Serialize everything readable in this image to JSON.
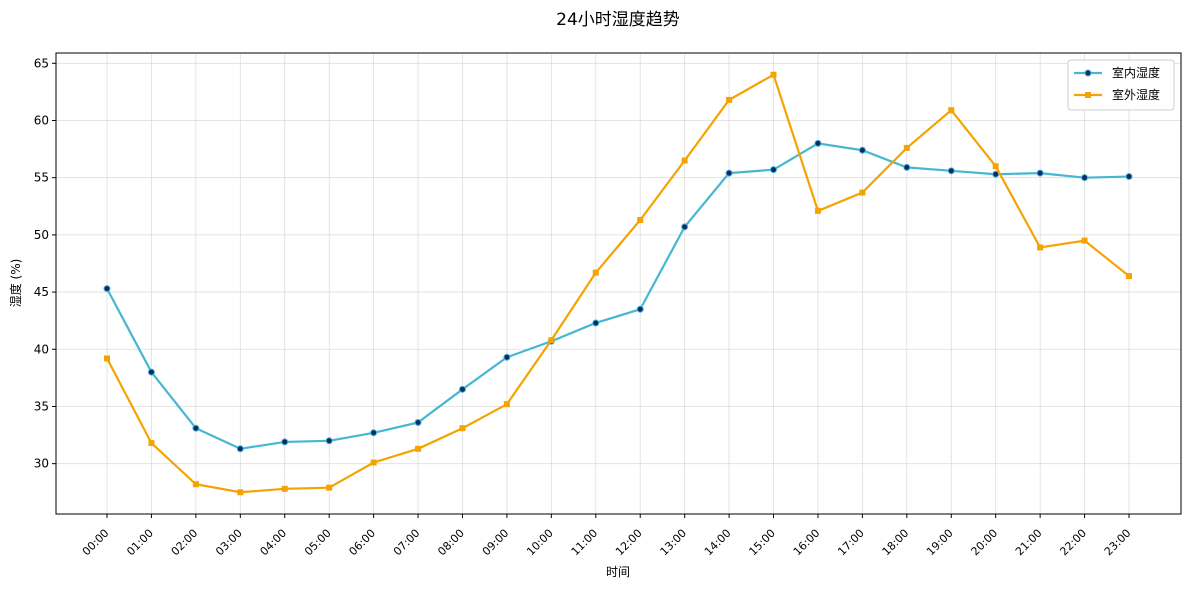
{
  "chart_data": {
    "type": "line",
    "title": "24小时湿度趋势",
    "xlabel": "时间",
    "ylabel": "湿度 (%)",
    "x": [
      "00:00",
      "01:00",
      "02:00",
      "03:00",
      "04:00",
      "05:00",
      "06:00",
      "07:00",
      "08:00",
      "09:00",
      "10:00",
      "11:00",
      "12:00",
      "13:00",
      "14:00",
      "15:00",
      "16:00",
      "17:00",
      "18:00",
      "19:00",
      "20:00",
      "21:00",
      "22:00",
      "23:00"
    ],
    "ylim": [
      25.6,
      65.9
    ],
    "yticks": [
      30,
      35,
      40,
      45,
      50,
      55,
      60,
      65
    ],
    "grid": true,
    "legend_position": "top-right",
    "series": [
      {
        "name": "室内湿度",
        "color": "#45b7d1",
        "marker": "circle",
        "marker_color": "#0a2a6b",
        "values": [
          45.3,
          38.0,
          33.1,
          31.3,
          31.9,
          32.0,
          32.7,
          33.6,
          36.5,
          39.3,
          40.7,
          42.3,
          43.5,
          50.7,
          55.4,
          55.7,
          58.0,
          57.4,
          55.9,
          55.6,
          55.3,
          55.4,
          55.0,
          55.1
        ]
      },
      {
        "name": "室外湿度",
        "color": "#f5a300",
        "marker": "square",
        "marker_color": "#f5a300",
        "values": [
          39.2,
          31.8,
          28.2,
          27.5,
          27.8,
          27.9,
          30.1,
          31.3,
          33.1,
          35.2,
          40.8,
          46.7,
          51.3,
          56.5,
          61.8,
          64.0,
          52.1,
          53.7,
          57.6,
          60.9,
          56.0,
          48.9,
          49.5,
          46.4
        ]
      }
    ]
  }
}
